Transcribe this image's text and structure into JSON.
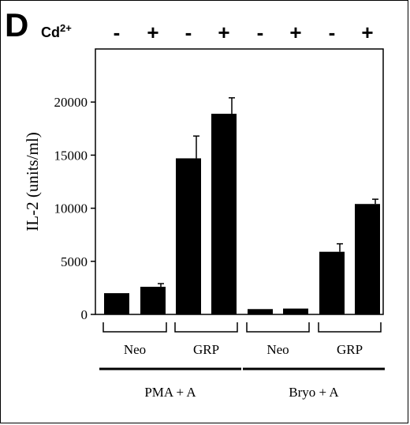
{
  "chart_data": {
    "type": "bar",
    "panel_label": "D",
    "treatment_label": "Cd",
    "treatment_superscript": "2+",
    "ylabel": "IL-2 (units/ml)",
    "ylim": [
      0,
      25000
    ],
    "yticks": [
      0,
      5000,
      10000,
      15000,
      20000
    ],
    "cadmium": [
      "-",
      "+",
      "-",
      "+",
      "-",
      "+",
      "-",
      "+"
    ],
    "values": [
      2000,
      2600,
      14700,
      18900,
      500,
      550,
      5900,
      10400
    ],
    "errors": [
      0,
      300,
      2100,
      1500,
      0,
      0,
      750,
      450
    ],
    "cell_groups": [
      {
        "label": "Neo",
        "bars": [
          0,
          1
        ]
      },
      {
        "label": "GRP",
        "bars": [
          2,
          3
        ]
      },
      {
        "label": "Neo",
        "bars": [
          4,
          5
        ]
      },
      {
        "label": "GRP",
        "bars": [
          6,
          7
        ]
      }
    ],
    "stimulation_groups": [
      {
        "label": "PMA + A",
        "bars": [
          0,
          3
        ]
      },
      {
        "label": "Bryo + A",
        "bars": [
          4,
          7
        ]
      }
    ],
    "bar_color": "#000000",
    "grid": false
  }
}
